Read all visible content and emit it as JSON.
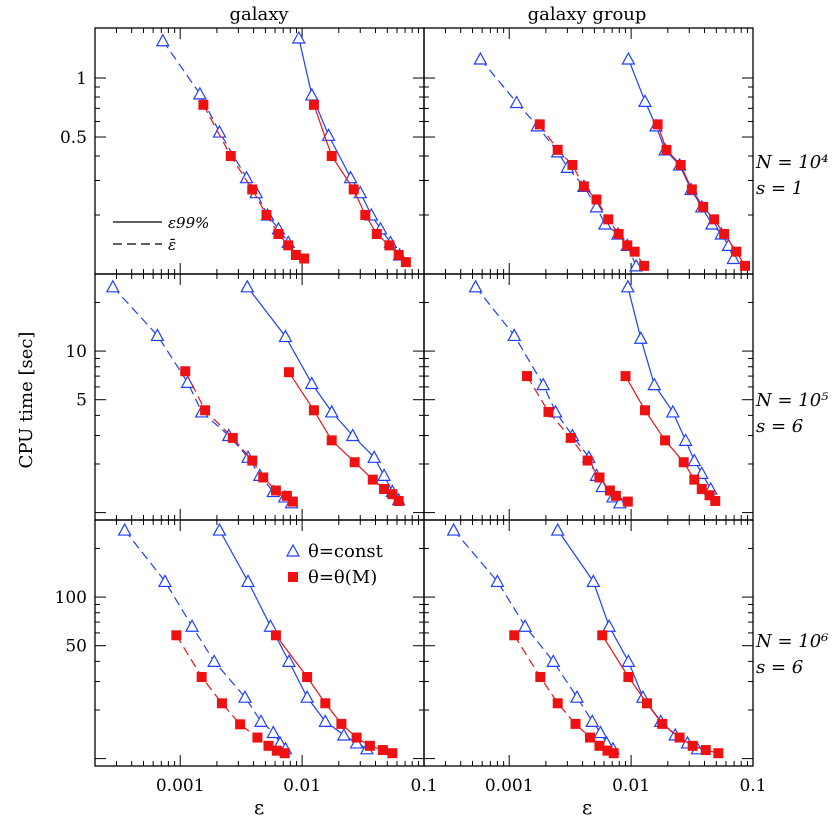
{
  "figure": {
    "column_titles": [
      "galaxy",
      "galaxy group"
    ],
    "ylabel": "CPU time [sec]",
    "xlabel": "ε",
    "row_labels": [
      {
        "N": "N = 10⁴",
        "s": "s = 1"
      },
      {
        "N": "N = 10⁵",
        "s": "s = 6"
      },
      {
        "N": "N = 10⁶",
        "s": "s = 6"
      }
    ],
    "line_legend": {
      "solid": "ε99%",
      "dashed": "ε̄"
    },
    "marker_legend": {
      "triangle": "θ=const",
      "square": "θ=θ(M)"
    },
    "colors": {
      "theta_const": "#1f3fff",
      "theta_M": "#ee1111",
      "axes": "#000000"
    }
  },
  "chart_data": [
    {
      "type": "line",
      "row": 0,
      "col": 0,
      "xscale": "log",
      "yscale": "log",
      "xlim": [
        0.0002,
        0.1
      ],
      "ylim": [
        0.1,
        1.8
      ],
      "xticks": [
        "0.001",
        "0.01",
        "0.1"
      ],
      "yticks": [
        "0.5",
        "1"
      ],
      "series": [
        {
          "marker": "triangle",
          "line": "dashed",
          "x": [
            0.00072,
            0.00145,
            0.0021,
            0.0035,
            0.0042,
            0.0052,
            0.0064,
            0.0077
          ],
          "y": [
            1.55,
            0.83,
            0.53,
            0.31,
            0.26,
            0.2,
            0.17,
            0.145
          ]
        },
        {
          "marker": "square",
          "line": "dashed",
          "x": [
            0.00155,
            0.0026,
            0.0039,
            0.0051,
            0.0064,
            0.0077,
            0.0089,
            0.0104
          ],
          "y": [
            0.73,
            0.4,
            0.27,
            0.2,
            0.16,
            0.14,
            0.125,
            0.12
          ]
        },
        {
          "marker": "triangle",
          "line": "solid",
          "x": [
            0.0094,
            0.012,
            0.0165,
            0.025,
            0.03,
            0.037,
            0.044,
            0.053,
            0.063
          ],
          "y": [
            1.6,
            0.82,
            0.51,
            0.31,
            0.26,
            0.2,
            0.17,
            0.145,
            0.125
          ]
        },
        {
          "marker": "square",
          "line": "solid",
          "x": [
            0.0125,
            0.0175,
            0.0265,
            0.033,
            0.041,
            0.052,
            0.062,
            0.071
          ],
          "y": [
            0.73,
            0.4,
            0.27,
            0.2,
            0.16,
            0.14,
            0.125,
            0.115
          ]
        }
      ]
    },
    {
      "type": "line",
      "row": 0,
      "col": 1,
      "xscale": "log",
      "yscale": "log",
      "xlim": [
        0.0002,
        0.1
      ],
      "ylim": [
        0.1,
        1.8
      ],
      "xticks": [
        "0.001",
        "0.01",
        "0.1"
      ],
      "yticks": [
        "0.5",
        "1"
      ],
      "series": [
        {
          "marker": "triangle",
          "line": "dashed",
          "x": [
            0.00058,
            0.00115,
            0.0017,
            0.0025,
            0.003,
            0.0041,
            0.0052,
            0.0061,
            0.0078,
            0.0093,
            0.011
          ],
          "y": [
            1.25,
            0.75,
            0.57,
            0.42,
            0.35,
            0.28,
            0.22,
            0.18,
            0.16,
            0.14,
            0.11
          ]
        },
        {
          "marker": "square",
          "line": "dashed",
          "x": [
            0.00178,
            0.0025,
            0.0033,
            0.0041,
            0.0052,
            0.0065,
            0.0079,
            0.0093,
            0.0107,
            0.0128
          ],
          "y": [
            0.58,
            0.43,
            0.36,
            0.28,
            0.24,
            0.19,
            0.16,
            0.14,
            0.13,
            0.11
          ]
        },
        {
          "marker": "triangle",
          "line": "solid",
          "x": [
            0.0095,
            0.013,
            0.016,
            0.019,
            0.025,
            0.031,
            0.038,
            0.046,
            0.055,
            0.063,
            0.069
          ],
          "y": [
            1.25,
            0.76,
            0.57,
            0.43,
            0.36,
            0.27,
            0.22,
            0.18,
            0.16,
            0.14,
            0.12
          ]
        },
        {
          "marker": "square",
          "line": "solid",
          "x": [
            0.0165,
            0.0195,
            0.0255,
            0.0315,
            0.039,
            0.048,
            0.058,
            0.073,
            0.086
          ],
          "y": [
            0.58,
            0.43,
            0.36,
            0.27,
            0.22,
            0.19,
            0.16,
            0.13,
            0.11
          ]
        }
      ]
    },
    {
      "type": "line",
      "row": 1,
      "col": 0,
      "xscale": "log",
      "yscale": "log",
      "xlim": [
        0.0002,
        0.1
      ],
      "ylim": [
        0.9,
        30
      ],
      "xticks": [
        "0.001",
        "0.01",
        "0.1"
      ],
      "yticks": [
        "5",
        "10"
      ],
      "series": [
        {
          "marker": "triangle",
          "line": "dashed",
          "x": [
            0.00028,
            0.00065,
            0.00115,
            0.0015,
            0.0025,
            0.0036,
            0.0045,
            0.0058,
            0.0072,
            0.0082
          ],
          "y": [
            25,
            12.5,
            6.4,
            4.2,
            3.0,
            2.2,
            1.7,
            1.35,
            1.25,
            1.15
          ]
        },
        {
          "marker": "square",
          "line": "dashed",
          "x": [
            0.0011,
            0.0016,
            0.0027,
            0.0039,
            0.0048,
            0.0061,
            0.0075,
            0.0084
          ],
          "y": [
            7.5,
            4.3,
            2.9,
            2.1,
            1.65,
            1.37,
            1.27,
            1.17
          ]
        },
        {
          "marker": "triangle",
          "line": "solid",
          "x": [
            0.00355,
            0.0073,
            0.012,
            0.0175,
            0.026,
            0.039,
            0.047,
            0.055,
            0.062
          ],
          "y": [
            25,
            12.3,
            6.3,
            4.2,
            3.0,
            2.2,
            1.7,
            1.35,
            1.2
          ]
        },
        {
          "marker": "square",
          "line": "solid",
          "x": [
            0.0078,
            0.0125,
            0.0175,
            0.027,
            0.038,
            0.047,
            0.055,
            0.062
          ],
          "y": [
            7.4,
            4.3,
            2.8,
            2.05,
            1.6,
            1.4,
            1.3,
            1.18
          ]
        }
      ]
    },
    {
      "type": "line",
      "row": 1,
      "col": 1,
      "xscale": "log",
      "yscale": "log",
      "xlim": [
        0.0002,
        0.1
      ],
      "ylim": [
        0.9,
        30
      ],
      "xticks": [
        "0.001",
        "0.01",
        "0.1"
      ],
      "yticks": [
        "5",
        "10"
      ],
      "series": [
        {
          "marker": "triangle",
          "line": "dashed",
          "x": [
            0.00053,
            0.0011,
            0.0019,
            0.0024,
            0.0033,
            0.0045,
            0.0052,
            0.0058,
            0.0071,
            0.0081
          ],
          "y": [
            25,
            12.5,
            6.2,
            4.2,
            3.0,
            2.2,
            1.7,
            1.45,
            1.25,
            1.15
          ]
        },
        {
          "marker": "square",
          "line": "dashed",
          "x": [
            0.0014,
            0.0021,
            0.0032,
            0.0044,
            0.0055,
            0.0067,
            0.0075,
            0.0094
          ],
          "y": [
            7.0,
            4.2,
            2.9,
            2.1,
            1.65,
            1.37,
            1.27,
            1.17
          ]
        },
        {
          "marker": "triangle",
          "line": "solid",
          "x": [
            0.0094,
            0.012,
            0.0155,
            0.022,
            0.028,
            0.033,
            0.038,
            0.045
          ],
          "y": [
            25,
            12.0,
            6.2,
            4.2,
            2.8,
            2.1,
            1.75,
            1.4
          ]
        },
        {
          "marker": "square",
          "line": "solid",
          "x": [
            0.009,
            0.013,
            0.019,
            0.027,
            0.033,
            0.038,
            0.044,
            0.049
          ],
          "y": [
            7.0,
            4.3,
            2.8,
            2.05,
            1.6,
            1.4,
            1.28,
            1.18
          ]
        }
      ]
    },
    {
      "type": "line",
      "row": 2,
      "col": 0,
      "xscale": "log",
      "yscale": "log",
      "xlim": [
        0.0002,
        0.1
      ],
      "ylim": [
        9,
        300
      ],
      "xticks": [
        "0.001",
        "0.01",
        "0.1"
      ],
      "yticks": [
        "50",
        "100"
      ],
      "series": [
        {
          "marker": "triangle",
          "line": "dashed",
          "x": [
            0.00035,
            0.00075,
            0.00125,
            0.0019,
            0.0034,
            0.0046,
            0.0058,
            0.0066,
            0.0073
          ],
          "y": [
            260,
            125,
            66,
            40,
            24,
            17,
            14.5,
            12.5,
            11.5
          ]
        },
        {
          "marker": "square",
          "line": "dashed",
          "x": [
            0.00093,
            0.0015,
            0.0022,
            0.0031,
            0.0043,
            0.0053,
            0.0062,
            0.0072
          ],
          "y": [
            58,
            32,
            22,
            16.3,
            13.5,
            12.0,
            11.2,
            10.8
          ]
        },
        {
          "marker": "triangle",
          "line": "solid",
          "x": [
            0.0021,
            0.0036,
            0.0055,
            0.0078,
            0.011,
            0.0155,
            0.022,
            0.028,
            0.034
          ],
          "y": [
            260,
            125,
            66,
            40,
            24,
            17,
            14,
            12.5,
            11.5
          ]
        },
        {
          "marker": "square",
          "line": "solid",
          "x": [
            0.0061,
            0.011,
            0.0155,
            0.021,
            0.028,
            0.036,
            0.046,
            0.055
          ],
          "y": [
            58,
            32,
            22,
            16.4,
            13.5,
            12.0,
            11.3,
            10.8
          ]
        }
      ]
    },
    {
      "type": "line",
      "row": 2,
      "col": 1,
      "xscale": "log",
      "yscale": "log",
      "xlim": [
        0.0002,
        0.1
      ],
      "ylim": [
        9,
        300
      ],
      "xticks": [
        "0.001",
        "0.01",
        "0.1"
      ],
      "yticks": [
        "50",
        "100"
      ],
      "series": [
        {
          "marker": "triangle",
          "line": "dashed",
          "x": [
            0.00035,
            0.0008,
            0.00135,
            0.0023,
            0.0036,
            0.0048,
            0.0056,
            0.0063,
            0.0071
          ],
          "y": [
            260,
            125,
            66,
            40,
            24,
            17,
            14.5,
            12.5,
            11.5
          ]
        },
        {
          "marker": "square",
          "line": "dashed",
          "x": [
            0.0011,
            0.0018,
            0.0025,
            0.0035,
            0.0046,
            0.0055,
            0.0064,
            0.0072
          ],
          "y": [
            58,
            32,
            22,
            16.4,
            13.5,
            12.0,
            11.2,
            10.8
          ]
        },
        {
          "marker": "triangle",
          "line": "solid",
          "x": [
            0.0025,
            0.0049,
            0.0066,
            0.0095,
            0.0125,
            0.0175,
            0.023,
            0.029,
            0.035
          ],
          "y": [
            260,
            125,
            66,
            40,
            24,
            17,
            14,
            12.5,
            11.5
          ]
        },
        {
          "marker": "square",
          "line": "solid",
          "x": [
            0.0058,
            0.0095,
            0.0135,
            0.018,
            0.025,
            0.032,
            0.041,
            0.052
          ],
          "y": [
            58,
            32,
            22,
            16.4,
            13.5,
            12.0,
            11.3,
            10.8
          ]
        }
      ]
    }
  ]
}
